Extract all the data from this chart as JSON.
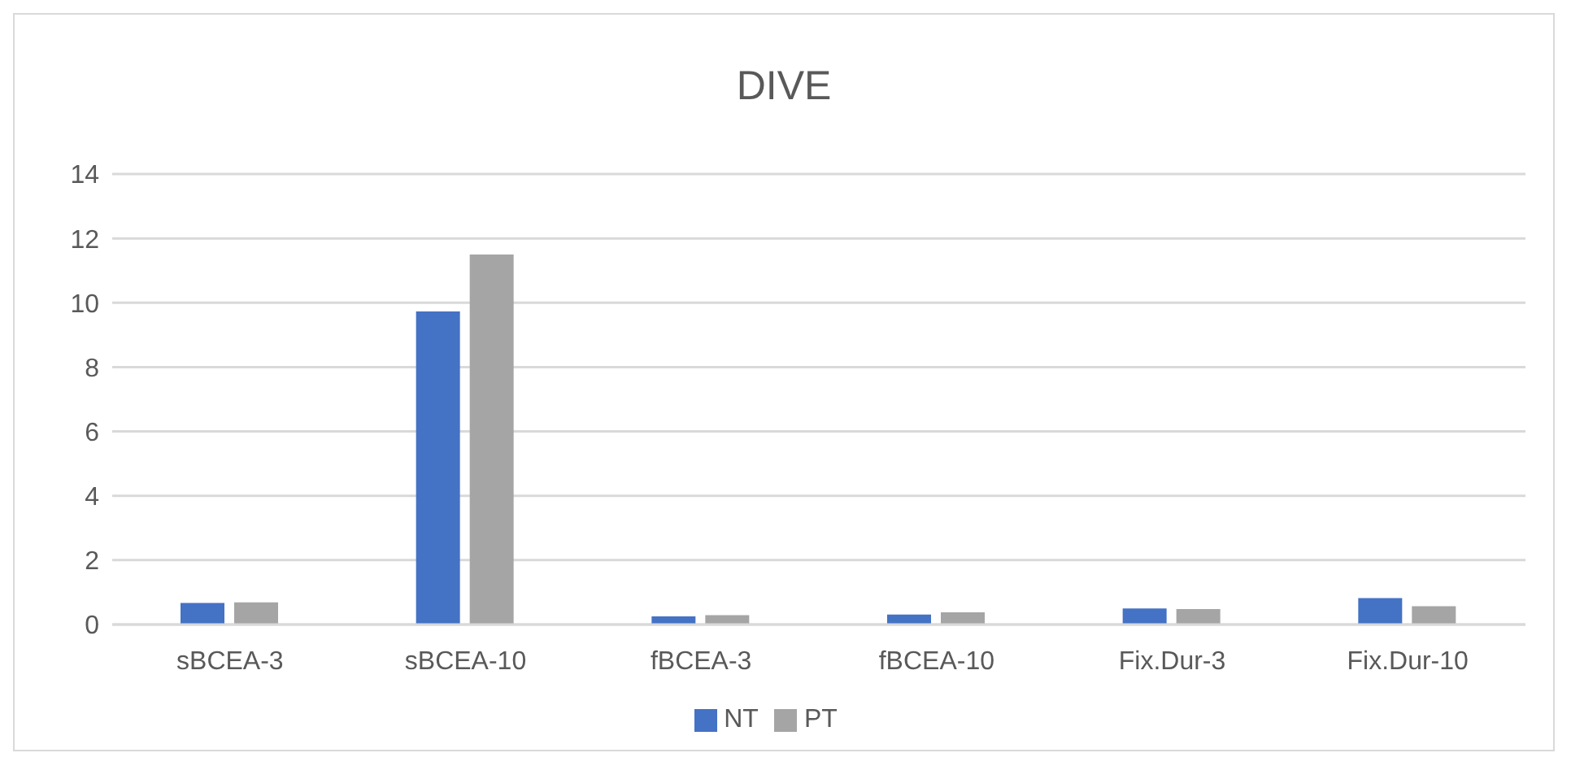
{
  "chart_data": {
    "type": "bar",
    "title": "DIVE",
    "categories": [
      "sBCEA-3",
      "sBCEA-10",
      "fBCEA-3",
      "fBCEA-10",
      "Fix.Dur-3",
      "Fix.Dur-10"
    ],
    "series": [
      {
        "name": "NT",
        "color": "#4472c4",
        "values": [
          0.67,
          9.73,
          0.25,
          0.31,
          0.5,
          0.82
        ]
      },
      {
        "name": "PT",
        "color": "#a5a5a5",
        "values": [
          0.69,
          11.5,
          0.29,
          0.38,
          0.48,
          0.57
        ]
      }
    ],
    "ylim": [
      0,
      14
    ],
    "yticks": [
      0,
      2,
      4,
      6,
      8,
      10,
      12,
      14
    ],
    "grid": "y",
    "legend": "bottom"
  }
}
